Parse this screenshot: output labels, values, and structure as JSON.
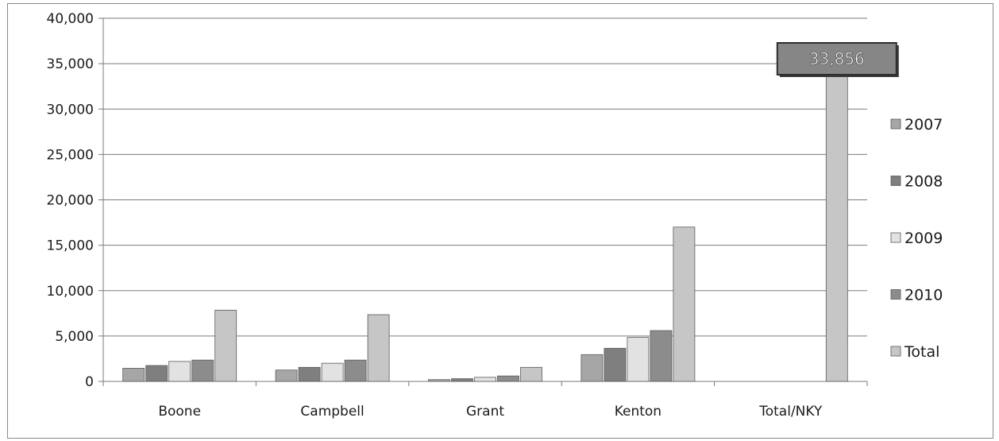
{
  "chart_data": {
    "type": "bar",
    "title": "",
    "xlabel": "",
    "ylabel": "",
    "categories": [
      "Boone",
      "Campbell",
      "Grant",
      "Kenton",
      "Total/NKY"
    ],
    "series": [
      {
        "name": "2007",
        "color": "#a6a6a6",
        "values": [
          1450,
          1250,
          200,
          2950,
          null
        ]
      },
      {
        "name": "2008",
        "color": "#7f7f7f",
        "values": [
          1750,
          1550,
          300,
          3650,
          null
        ]
      },
      {
        "name": "2009",
        "color": "#e2e2e2",
        "values": [
          2200,
          2000,
          450,
          4850,
          null
        ]
      },
      {
        "name": "2010",
        "color": "#8c8c8c",
        "values": [
          2350,
          2350,
          600,
          5600,
          null
        ]
      },
      {
        "name": "Total",
        "color": "#c6c6c6",
        "values": [
          7850,
          7350,
          1550,
          17000,
          33856
        ]
      }
    ],
    "ylim": [
      0,
      40000
    ],
    "yticks": [
      0,
      5000,
      10000,
      15000,
      20000,
      25000,
      30000,
      35000,
      40000
    ],
    "ytick_labels": [
      "0",
      "5,000",
      "10,000",
      "15,000",
      "20,000",
      "25,000",
      "30,000",
      "35,000",
      "40,000"
    ],
    "annotation": {
      "text": "33,856",
      "category": "Total/NKY",
      "series": "Total",
      "value": 33856
    },
    "grid": true,
    "legend": "right"
  }
}
